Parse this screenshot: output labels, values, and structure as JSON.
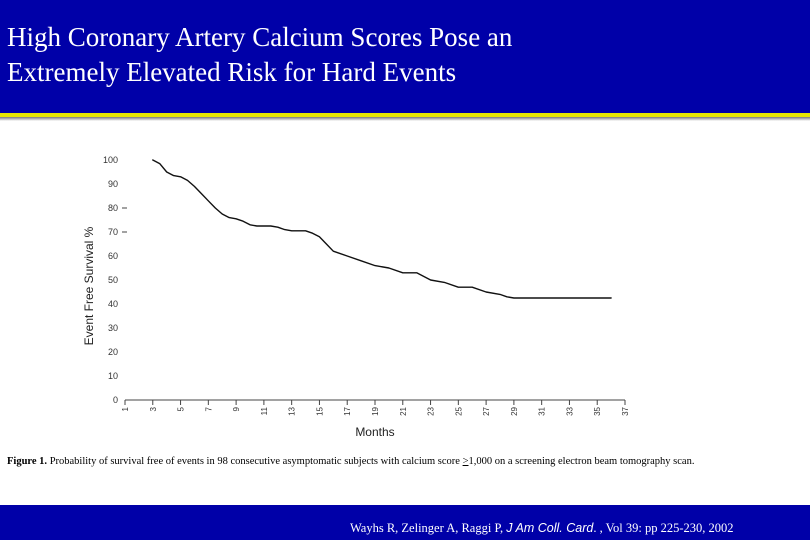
{
  "slide": {
    "title_line1": "High Coronary Artery Calcium Scores Pose an",
    "title_line2": "Extremely Elevated Risk for Hard Events",
    "colors": {
      "band": "#0000a8",
      "rule": "#e8e800",
      "text": "#ffffff"
    }
  },
  "caption": {
    "lead": "Figure 1.",
    "text_before": " Probability of survival free of events in 98 consecutive asymptomatic subjects with calcium score ",
    "ge_symbol": ">",
    "text_after": "1,000 on a screening electron beam tomography scan."
  },
  "citation": {
    "authors": "Wayhs R, Zelinger A, Raggi P, ",
    "journal": "J Am Coll. Card",
    "details": ". , Vol 39: pp 225-230, 2002"
  },
  "chart_data": {
    "type": "line",
    "xlabel": "Months",
    "ylabel": "Event Free Survival %",
    "xlim": [
      1,
      37
    ],
    "ylim": [
      0,
      100
    ],
    "x_ticks": [
      "1",
      "3",
      "5",
      "7",
      "9",
      "11",
      "13",
      "15",
      "17",
      "19",
      "21",
      "23",
      "25",
      "27",
      "29",
      "31",
      "33",
      "35",
      "37"
    ],
    "y_ticks": [
      "0",
      "10",
      "20",
      "30",
      "40",
      "50",
      "60",
      "70",
      "80",
      "90",
      "100"
    ],
    "y_tick_dash": [
      "80",
      "70"
    ],
    "grid": false,
    "series": [
      {
        "x": [
          3,
          3.5,
          4,
          4.5,
          5,
          5.5,
          6,
          6.5,
          7,
          7.5,
          8,
          8.5,
          9,
          9.5,
          10,
          10.5,
          11,
          11.5,
          12,
          12.5,
          13,
          13.5,
          14,
          14.5,
          15,
          15.5,
          16,
          17,
          18,
          19,
          20,
          21,
          22,
          23,
          24,
          25,
          26,
          27,
          28,
          28.5,
          29,
          31,
          33,
          35,
          36
        ],
        "y": [
          100,
          98.5,
          95,
          93.5,
          93,
          91.5,
          89,
          86,
          83,
          80,
          77.5,
          76,
          75.5,
          74.5,
          73,
          72.5,
          72.5,
          72.5,
          72,
          71,
          70.5,
          70.5,
          70.5,
          69.5,
          68,
          65,
          62,
          60,
          58,
          56,
          55,
          53,
          53,
          50,
          49,
          47,
          47,
          45,
          44,
          43,
          42.5,
          42.5,
          42.5,
          42.5,
          42.5
        ]
      }
    ]
  }
}
